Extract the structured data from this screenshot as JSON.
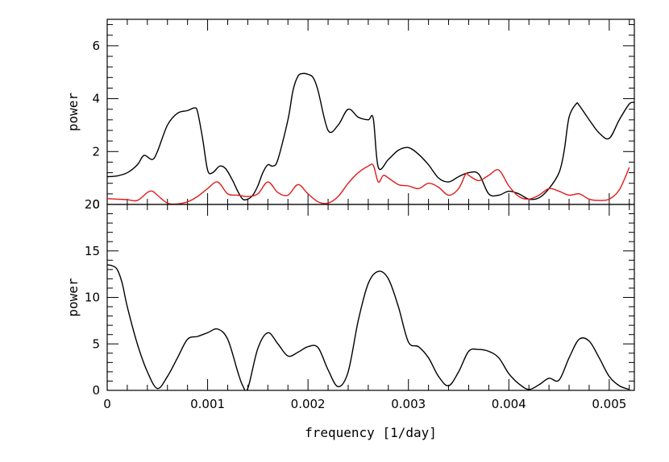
{
  "chart_data": [
    {
      "type": "line",
      "panel": "top",
      "title": "",
      "xlabel": "",
      "ylabel": "power",
      "xlim": [
        0,
        0.00525
      ],
      "ylim": [
        0,
        7
      ],
      "y_ticks": [
        {
          "value": 0,
          "label": "0"
        },
        {
          "value": 2,
          "label": "2"
        },
        {
          "value": 4,
          "label": "4"
        },
        {
          "value": 6,
          "label": "6"
        }
      ],
      "series": [
        {
          "color": "#000000",
          "x": [
            0,
            0.0001,
            0.0002,
            0.0003,
            0.00035,
            0.00038,
            0.00045,
            0.0005,
            0.0006,
            0.0007,
            0.0008,
            0.00087,
            0.0009,
            0.00095,
            0.001,
            0.00105,
            0.00112,
            0.00118,
            0.00125,
            0.0013,
            0.00135,
            0.0014,
            0.00145,
            0.0015,
            0.00155,
            0.0016,
            0.00165,
            0.0017,
            0.0018,
            0.00185,
            0.0019,
            0.00195,
            0.002,
            0.00205,
            0.0021,
            0.0022,
            0.0023,
            0.0024,
            0.0025,
            0.0026,
            0.00265,
            0.0027,
            0.0028,
            0.0029,
            0.003,
            0.0031,
            0.0032,
            0.0033,
            0.0034,
            0.0035,
            0.0036,
            0.0037,
            0.0038,
            0.0039,
            0.004,
            0.0041,
            0.0042,
            0.0043,
            0.0044,
            0.0045,
            0.00455,
            0.0046,
            0.00467,
            0.0047,
            0.0048,
            0.0049,
            0.005,
            0.0051,
            0.0052,
            0.00525
          ],
          "y": [
            1.05,
            1.08,
            1.2,
            1.5,
            1.8,
            1.85,
            1.7,
            2.0,
            3.0,
            3.45,
            3.55,
            3.65,
            3.5,
            2.5,
            1.3,
            1.2,
            1.45,
            1.35,
            0.9,
            0.5,
            0.2,
            0.2,
            0.35,
            0.7,
            1.2,
            1.5,
            1.45,
            1.7,
            3.2,
            4.3,
            4.85,
            4.95,
            4.92,
            4.8,
            4.3,
            2.8,
            3.0,
            3.6,
            3.3,
            3.2,
            3.25,
            1.4,
            1.7,
            2.05,
            2.15,
            1.9,
            1.5,
            1.0,
            0.85,
            1.05,
            1.2,
            1.15,
            0.4,
            0.35,
            0.5,
            0.4,
            0.2,
            0.25,
            0.6,
            1.2,
            2.0,
            3.3,
            3.8,
            3.75,
            3.2,
            2.7,
            2.5,
            3.2,
            3.8,
            3.85
          ]
        },
        {
          "color": "#e01b1b",
          "x": [
            0,
            0.0001,
            0.0002,
            0.0003,
            0.0004,
            0.00045,
            0.0005,
            0.0006,
            0.0007,
            0.0008,
            0.0009,
            0.001,
            0.0011,
            0.0012,
            0.0013,
            0.0014,
            0.0015,
            0.0016,
            0.0017,
            0.0018,
            0.0019,
            0.002,
            0.0021,
            0.0022,
            0.0023,
            0.0024,
            0.0025,
            0.0026,
            0.00265,
            0.0027,
            0.00275,
            0.0028,
            0.0029,
            0.003,
            0.0031,
            0.0032,
            0.0033,
            0.0034,
            0.0035,
            0.00357,
            0.0036,
            0.0037,
            0.0038,
            0.0039,
            0.004,
            0.0041,
            0.0042,
            0.0043,
            0.0044,
            0.0045,
            0.0046,
            0.0047,
            0.0048,
            0.0049,
            0.005,
            0.0051,
            0.0052
          ],
          "y": [
            0.22,
            0.2,
            0.18,
            0.15,
            0.45,
            0.5,
            0.35,
            0.05,
            0.02,
            0.1,
            0.3,
            0.6,
            0.85,
            0.4,
            0.35,
            0.3,
            0.4,
            0.85,
            0.45,
            0.35,
            0.75,
            0.4,
            0.1,
            0.05,
            0.3,
            0.8,
            1.2,
            1.45,
            1.48,
            0.85,
            1.1,
            1.0,
            0.75,
            0.7,
            0.6,
            0.8,
            0.65,
            0.35,
            0.6,
            1.15,
            1.1,
            0.9,
            1.1,
            1.3,
            0.7,
            0.3,
            0.2,
            0.35,
            0.6,
            0.5,
            0.35,
            0.4,
            0.2,
            0.15,
            0.2,
            0.55,
            1.4
          ]
        }
      ]
    },
    {
      "type": "line",
      "panel": "bottom",
      "title": "",
      "xlabel": "frequency [1/day]",
      "ylabel": "power",
      "xlim": [
        0,
        0.00525
      ],
      "ylim": [
        0,
        20
      ],
      "x_ticks": [
        {
          "value": 0,
          "label": "0"
        },
        {
          "value": 0.001,
          "label": "0.001"
        },
        {
          "value": 0.002,
          "label": "0.002"
        },
        {
          "value": 0.003,
          "label": "0.003"
        },
        {
          "value": 0.004,
          "label": "0.004"
        },
        {
          "value": 0.005,
          "label": "0.005"
        }
      ],
      "y_ticks": [
        {
          "value": 0,
          "label": "0"
        },
        {
          "value": 5,
          "label": "5"
        },
        {
          "value": 10,
          "label": "10"
        },
        {
          "value": 15,
          "label": "15"
        },
        {
          "value": 20,
          "label": "20"
        }
      ],
      "series": [
        {
          "color": "#000000",
          "x": [
            0,
            5e-05,
            0.0001,
            0.00015,
            0.0002,
            0.0003,
            0.0004,
            0.0005,
            0.0006,
            0.0007,
            0.0008,
            0.0009,
            0.001,
            0.0011,
            0.0012,
            0.0013,
            0.00135,
            0.0014,
            0.0015,
            0.0016,
            0.0017,
            0.0018,
            0.0019,
            0.002,
            0.0021,
            0.0022,
            0.0023,
            0.0024,
            0.0025,
            0.0026,
            0.0027,
            0.0028,
            0.0029,
            0.003,
            0.0031,
            0.0032,
            0.0033,
            0.0034,
            0.0035,
            0.0036,
            0.0037,
            0.0038,
            0.0039,
            0.004,
            0.0041,
            0.0042,
            0.0043,
            0.0044,
            0.0045,
            0.0046,
            0.0047,
            0.0048,
            0.0049,
            0.005,
            0.0051,
            0.0052
          ],
          "y": [
            13.5,
            13.4,
            13.0,
            11.5,
            9.0,
            5.0,
            2.0,
            0.2,
            1.5,
            3.5,
            5.5,
            5.8,
            6.2,
            6.6,
            5.5,
            2.0,
            0.5,
            0.2,
            4.5,
            6.2,
            5.0,
            3.7,
            4.1,
            4.7,
            4.6,
            2.2,
            0.4,
            2.0,
            7.5,
            11.5,
            12.8,
            12.0,
            9.0,
            5.2,
            4.7,
            3.5,
            1.5,
            0.5,
            2.0,
            4.2,
            4.4,
            4.2,
            3.5,
            1.8,
            0.7,
            0.1,
            0.6,
            1.3,
            1.1,
            3.5,
            5.5,
            5.3,
            3.5,
            1.5,
            0.5,
            0.1
          ]
        }
      ]
    }
  ]
}
